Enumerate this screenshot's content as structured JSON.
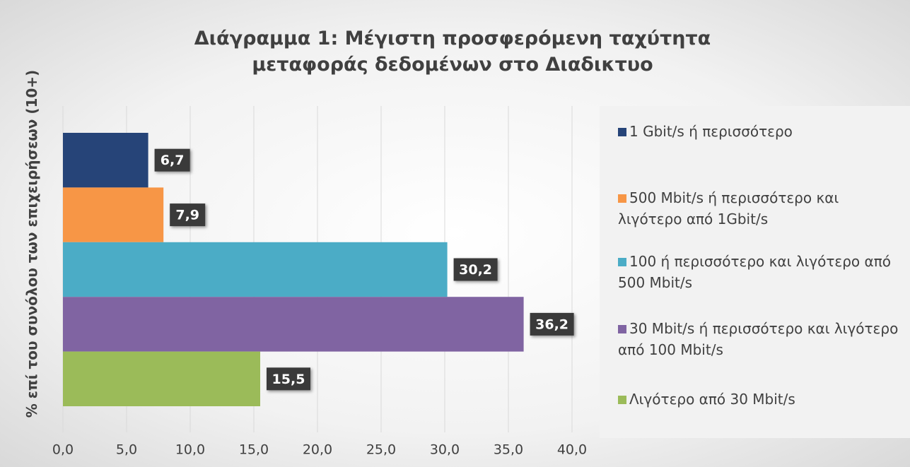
{
  "chart_data": {
    "type": "bar",
    "orientation": "horizontal",
    "title": "Διάγραμμα 1: Μέγιστη προσφερόμενη ταχύτητα μεταφοράς δεδομένων στο Διαδικτυο",
    "ylabel": "% επί του συνόλου των επιχειρήσεων (10+)",
    "series": [
      {
        "name": "1 Gbit/s ή περισσότερο",
        "color": "#264478",
        "values": [
          6.7
        ],
        "value_labels": [
          "6,7"
        ]
      },
      {
        "name": "500 Mbit/s ή περισσότερο και λιγότερο από 1Gbit/s",
        "color": "#f79646",
        "values": [
          7.9
        ],
        "value_labels": [
          "7,9"
        ]
      },
      {
        "name": "100 ή περισσότερο και λιγότερο από 500 Mbit/s",
        "color": "#4bacc6",
        "values": [
          30.2
        ],
        "value_labels": [
          "30,2"
        ]
      },
      {
        "name": "30 Mbit/s ή περισσότερο και λιγότερο από 100 Mbit/s",
        "color": "#8064a2",
        "values": [
          36.2
        ],
        "value_labels": [
          "36,2"
        ]
      },
      {
        "name": "Λιγότερο από 30 Mbit/s",
        "color": "#9bbb59",
        "values": [
          15.5
        ],
        "value_labels": [
          "15,5"
        ]
      }
    ],
    "xlim": [
      0,
      40
    ],
    "xticks": [
      {
        "value": 0,
        "label": "0,0"
      },
      {
        "value": 5,
        "label": "5,0"
      },
      {
        "value": 10,
        "label": "10,0"
      },
      {
        "value": 15,
        "label": "15,0"
      },
      {
        "value": 20,
        "label": "20,0"
      },
      {
        "value": 25,
        "label": "25,0"
      },
      {
        "value": 30,
        "label": "30,0"
      },
      {
        "value": 35,
        "label": "35,0"
      },
      {
        "value": 40,
        "label": "40,0"
      }
    ],
    "grid": true,
    "legend": "right"
  }
}
